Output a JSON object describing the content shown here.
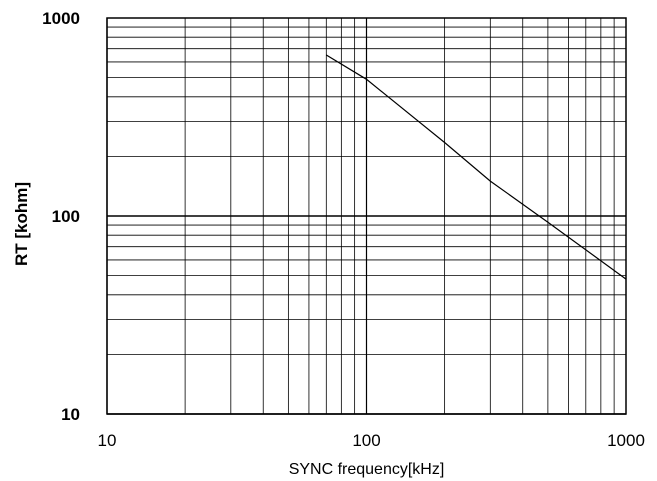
{
  "chart_data": {
    "type": "line",
    "title": "",
    "xlabel": "SYNC frequency[kHz]",
    "ylabel": "RT [kohm]",
    "xscale": "log",
    "yscale": "log",
    "xlim": [
      10,
      1000
    ],
    "ylim": [
      10,
      1000
    ],
    "grid": true,
    "legend": "none",
    "x_tick_labels": [
      "10",
      "100",
      "1000"
    ],
    "y_tick_labels": [
      "10",
      "100",
      "1000"
    ],
    "series": [
      {
        "color": "#000000",
        "x": [
          70,
          100,
          200,
          300,
          500,
          1000
        ],
        "y": [
          650,
          490,
          235,
          150,
          93,
          48
        ]
      }
    ]
  }
}
